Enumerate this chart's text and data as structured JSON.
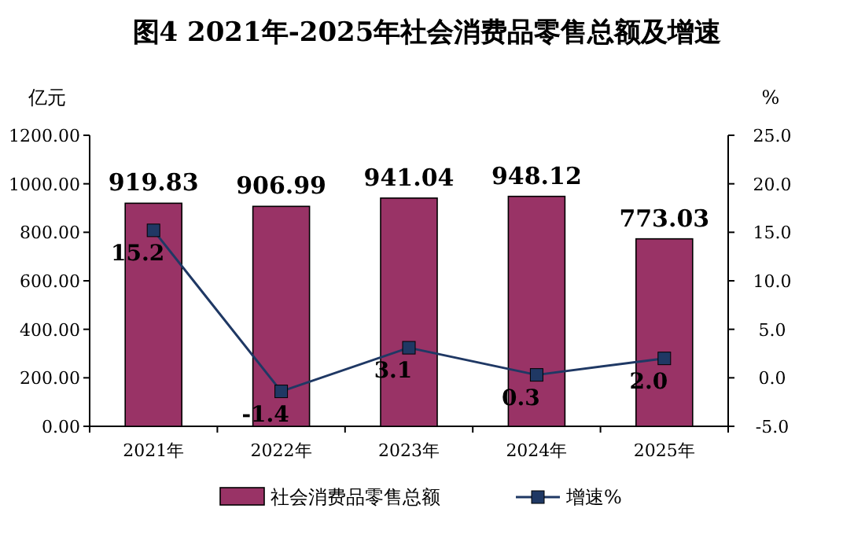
{
  "chart_data": {
    "type": "bar",
    "title": "图4 2021年-2025年社会消费品零售总额及增速",
    "ylabel": "亿元",
    "y2label": "%",
    "categories": [
      "2021年",
      "2022年",
      "2023年",
      "2024年",
      "2025年"
    ],
    "series": [
      {
        "name": "社会消费品零售总额",
        "color": "#993366",
        "values": [
          919.83,
          906.99,
          941.04,
          948.12,
          773.03
        ],
        "value_labels": [
          "919.83",
          "906.99",
          "941.04",
          "948.12",
          "773.03"
        ]
      },
      {
        "name": "增速%",
        "type": "line",
        "axis": "y2",
        "color": "#1f3864",
        "values": [
          15.2,
          -1.4,
          3.1,
          0.3,
          2.0
        ],
        "value_labels": [
          "15.2",
          "-1.4",
          "3.1",
          "0.3",
          "2.0"
        ]
      }
    ],
    "ylim": [
      0,
      1200
    ],
    "yticks": [
      {
        "value": 0,
        "label": "0.00"
      },
      {
        "value": 200,
        "label": "200.00"
      },
      {
        "value": 400,
        "label": "400.00"
      },
      {
        "value": 600,
        "label": "600.00"
      },
      {
        "value": 800,
        "label": "800.00"
      },
      {
        "value": 1000,
        "label": "1000.00"
      },
      {
        "value": 1200,
        "label": "1200.00"
      }
    ],
    "y2lim": [
      -5,
      25
    ],
    "y2ticks": [
      {
        "value": -5,
        "label": "-5.0"
      },
      {
        "value": 0,
        "label": "0.0"
      },
      {
        "value": 5,
        "label": "5.0"
      },
      {
        "value": 10,
        "label": "10.0"
      },
      {
        "value": 15,
        "label": "15.0"
      },
      {
        "value": 20,
        "label": "20.0"
      },
      {
        "value": 25,
        "label": "25.0"
      }
    ],
    "marker": "square",
    "legend": "bottom"
  }
}
